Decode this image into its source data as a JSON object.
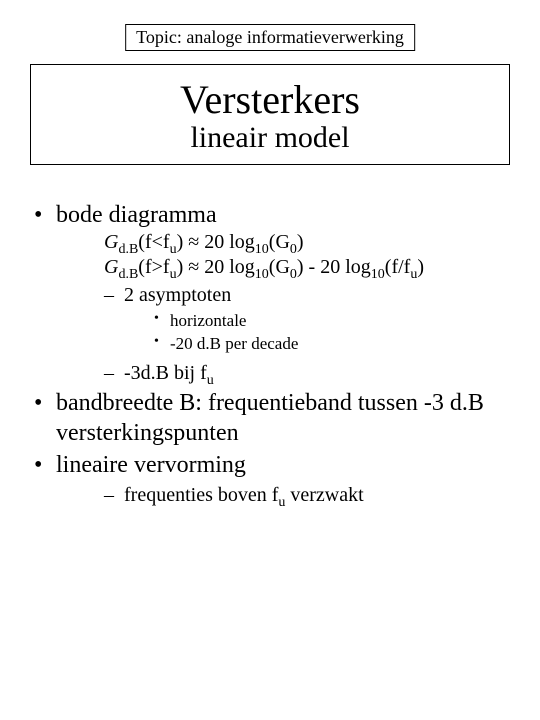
{
  "topic": "Topic: analoge informatieverwerking",
  "title": {
    "main": "Versterkers",
    "sub": "lineair model"
  },
  "b1": {
    "text": "bode diagramma",
    "formula1": {
      "g": "G",
      "gsub": "d.B",
      "open": "(f<f",
      "fsub": "u",
      "close": ") ",
      "approx": "≈",
      "rest1": " 20 log",
      "logsub": "10",
      "rest2": "(G",
      "g0sub": "0",
      "rest3": ")"
    },
    "formula2": {
      "g": "G",
      "gsub": "d.B",
      "open": "(f>f",
      "fsub": "u",
      "close": ") ",
      "approx": "≈",
      "rest1": " 20 log",
      "logsub": "10",
      "rest2": "(G",
      "g0sub": "0",
      "rest3": ") - 20 log",
      "logsub2": "10",
      "rest4": "(f/f",
      "fsub2": "u",
      "rest5": ")"
    },
    "sub1": {
      "text": "2 asymptoten",
      "a": "horizontale",
      "b": "-20 d.B per decade"
    },
    "sub2": {
      "pre": "-3d.B bij f",
      "sub": "u"
    }
  },
  "b2": "bandbreedte B: frequentieband tussen -3 d.B versterkingspunten",
  "b3": {
    "text": "lineaire vervorming",
    "sub1": {
      "pre": "frequenties boven f",
      "sub": "u",
      "post": " verzwakt"
    }
  },
  "style": {
    "background": "#ffffff",
    "text_color": "#000000",
    "border_color": "#000000",
    "font_family": "Times New Roman",
    "title_main_size_pt": 30,
    "title_sub_size_pt": 22,
    "body_lvl1_size_pt": 18,
    "body_lvl2_size_pt": 15,
    "body_lvl3_size_pt": 13
  }
}
